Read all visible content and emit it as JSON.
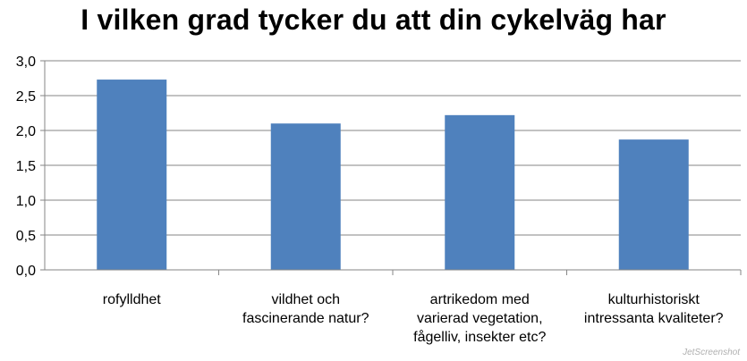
{
  "chart_data": {
    "type": "bar",
    "title": "I vilken grad tycker du att din cykelväg har",
    "categories": [
      [
        "rofylldhet"
      ],
      [
        "vildhet och",
        "fascinerande natur?"
      ],
      [
        "artrikedom med",
        "varierad vegetation,",
        "fågelliv, insekter etc?"
      ],
      [
        "kulturhistoriskt",
        "intressanta kvaliteter?"
      ]
    ],
    "values": [
      2.73,
      2.1,
      2.22,
      1.87
    ],
    "ylim": [
      0,
      3
    ],
    "yticks": [
      "0,0",
      "0,5",
      "1,0",
      "1,5",
      "2,0",
      "2,5",
      "3,0"
    ],
    "xlabel": "",
    "ylabel": "",
    "grid": true,
    "bar_color": "#4f81bd",
    "grid_color": "#868686"
  },
  "watermark": "JetScreenshot"
}
